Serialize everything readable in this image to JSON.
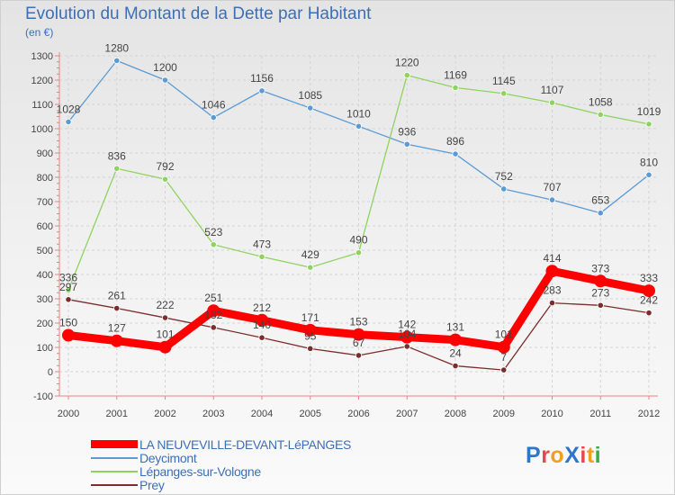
{
  "title": "Evolution du Montant de la Dette par Habitant",
  "subtitle": "(en €)",
  "logo": {
    "text": "ProXiti",
    "letters": [
      {
        "ch": "P",
        "color": "#2e76c9"
      },
      {
        "ch": "r",
        "color": "#e6484c"
      },
      {
        "ch": "o",
        "color": "#f0a020"
      },
      {
        "ch": "X",
        "color": "#2e76c9"
      },
      {
        "ch": "i",
        "color": "#e6484c"
      },
      {
        "ch": "t",
        "color": "#f0a020"
      },
      {
        "ch": "i",
        "color": "#3aa94a"
      }
    ]
  },
  "chart_data": {
    "type": "line",
    "title": "Evolution du Montant de la Dette par Habitant",
    "ylabel": "(en €)",
    "x": [
      "2000",
      "2001",
      "2002",
      "2003",
      "2004",
      "2005",
      "2006",
      "2007",
      "2008",
      "2009",
      "2010",
      "2011",
      "2012"
    ],
    "ylim": [
      -100,
      1300
    ],
    "yticks": [
      -100,
      0,
      100,
      200,
      300,
      400,
      500,
      600,
      700,
      800,
      900,
      1000,
      1100,
      1200,
      1300
    ],
    "grid": true,
    "legend_position": "bottom-left",
    "series": [
      {
        "name": "LA NEUVEVILLE-DEVANT-LéPANGES",
        "color": "#ff0000",
        "values": [
          150,
          127,
          101,
          251,
          212,
          171,
          153,
          142,
          131,
          101,
          414,
          373,
          333
        ]
      },
      {
        "name": "Deycimont",
        "color": "#5b9bd5",
        "values": [
          1028,
          1280,
          1200,
          1046,
          1156,
          1085,
          1010,
          936,
          896,
          752,
          707,
          653,
          810
        ]
      },
      {
        "name": "Lépanges-sur-Vologne",
        "color": "#8fd35f",
        "values": [
          336,
          836,
          792,
          523,
          473,
          429,
          490,
          1220,
          1169,
          1145,
          1107,
          1058,
          1019
        ]
      },
      {
        "name": "Prey",
        "color": "#7b2c2c",
        "values": [
          297,
          261,
          222,
          182,
          140,
          95,
          67,
          104,
          24,
          7,
          283,
          273,
          242
        ]
      }
    ]
  }
}
